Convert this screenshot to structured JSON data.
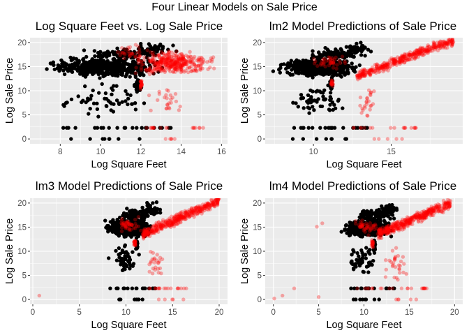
{
  "figure": {
    "suptitle": "Four Linear Models on Sale Price",
    "colors": {
      "panel_bg": "#EBEBEB",
      "grid": "#FFFFFF",
      "observed": "#000000",
      "predicted": "#FF0000"
    }
  },
  "chart_data": [
    {
      "type": "scatter",
      "title": "Log Square Feet vs. Log Sale Price",
      "xlabel": "Log Square Feet",
      "ylabel": "Log Sale Price",
      "xlim": [
        6.5,
        16.3
      ],
      "ylim": [
        -1,
        21
      ],
      "xticks": [
        8,
        10,
        12,
        14,
        16
      ],
      "yticks": [
        0,
        5,
        10,
        15,
        20
      ],
      "grid": true,
      "series": [
        {
          "color": "#000000",
          "opacity": 1.0,
          "role": "observed",
          "clusters": [
            {
              "shape": "band",
              "x": [
                6.9,
                13.4
              ],
              "y": [
                12.5,
                17.2
              ],
              "n": 520
            },
            {
              "shape": "band",
              "x": [
                8.8,
                13.6
              ],
              "y": [
                16.2,
                19.0
              ],
              "n": 90
            },
            {
              "shape": "band",
              "x": [
                11.5,
                14.0
              ],
              "y": [
                17.0,
                20.6
              ],
              "n": 40
            },
            {
              "shape": "band",
              "x": [
                7.5,
                12.6
              ],
              "y": [
                4.0,
                12.5
              ],
              "n": 55
            },
            {
              "shape": "band",
              "x": [
                11.6,
                12.1
              ],
              "y": [
                9.5,
                13.0
              ],
              "n": 45
            },
            {
              "shape": "line",
              "x": [
                8.0,
                13.6
              ],
              "y": [
                2.3,
                2.3
              ],
              "n": 22
            },
            {
              "shape": "line",
              "x": [
                8.5,
                12.2
              ],
              "y": [
                0.0,
                0.0
              ],
              "n": 8
            }
          ]
        },
        {
          "color": "#FF0000",
          "opacity": 0.32,
          "role": "predicted",
          "clusters": [
            {
              "shape": "band",
              "x": [
                11.2,
                16.0
              ],
              "y": [
                12.8,
                18.8
              ],
              "n": 380
            },
            {
              "shape": "band",
              "x": [
                10.3,
                12.5
              ],
              "y": [
                16.0,
                20.5
              ],
              "n": 30
            },
            {
              "shape": "band",
              "x": [
                11.95,
                12.1
              ],
              "y": [
                9.5,
                12.8
              ],
              "n": 25
            },
            {
              "shape": "band",
              "x": [
                12.2,
                14.5
              ],
              "y": [
                4.0,
                12.0
              ],
              "n": 25
            },
            {
              "shape": "line",
              "x": [
                11.9,
                15.2
              ],
              "y": [
                2.3,
                2.3
              ],
              "n": 18
            },
            {
              "shape": "line",
              "x": [
                12.5,
                14.0
              ],
              "y": [
                0.0,
                0.0
              ],
              "n": 5
            }
          ]
        }
      ]
    },
    {
      "type": "scatter",
      "title": "lm2 Model Predictions of Sale Price",
      "xlabel": "Log Square Feet",
      "ylabel": "Log Sale Price",
      "xlim": [
        6.9,
        19.6
      ],
      "ylim": [
        -1,
        21
      ],
      "xticks": [
        10,
        15
      ],
      "yticks": [
        0,
        5,
        10,
        15,
        20
      ],
      "grid": true,
      "series": [
        {
          "color": "#000000",
          "opacity": 1.0,
          "role": "observed",
          "clusters": [
            {
              "shape": "band",
              "x": [
                7.2,
                13.4
              ],
              "y": [
                12.5,
                17.2
              ],
              "n": 520
            },
            {
              "shape": "band",
              "x": [
                9.0,
                13.6
              ],
              "y": [
                16.2,
                19.0
              ],
              "n": 90
            },
            {
              "shape": "band",
              "x": [
                11.5,
                14.0
              ],
              "y": [
                17.0,
                20.6
              ],
              "n": 40
            },
            {
              "shape": "band",
              "x": [
                8.0,
                12.6
              ],
              "y": [
                4.0,
                12.5
              ],
              "n": 55
            },
            {
              "shape": "band",
              "x": [
                11.0,
                11.3
              ],
              "y": [
                9.5,
                13.0
              ],
              "n": 35
            },
            {
              "shape": "line",
              "x": [
                8.0,
                13.6
              ],
              "y": [
                2.3,
                2.3
              ],
              "n": 22
            },
            {
              "shape": "line",
              "x": [
                8.5,
                12.2
              ],
              "y": [
                0.0,
                0.0
              ],
              "n": 8
            }
          ]
        },
        {
          "color": "#FF0000",
          "opacity": 0.32,
          "role": "predicted",
          "trend": {
            "x": [
              12.8,
              19.0
            ],
            "y": [
              13.0,
              20.5
            ],
            "spread": 1.3
          },
          "clusters": [
            {
              "shape": "trend",
              "n": 420
            },
            {
              "shape": "band",
              "x": [
                9.5,
                12.5
              ],
              "y": [
                14.0,
                18.0
              ],
              "n": 40
            },
            {
              "shape": "band",
              "x": [
                11.1,
                11.3
              ],
              "y": [
                10.5,
                12.8
              ],
              "n": 20
            },
            {
              "shape": "band",
              "x": [
                12.8,
                14.0
              ],
              "y": [
                3.0,
                12.0
              ],
              "n": 25
            },
            {
              "shape": "line",
              "x": [
                12.5,
                16.6
              ],
              "y": [
                2.3,
                2.3
              ],
              "n": 18
            },
            {
              "shape": "line",
              "x": [
                13.5,
                16.0
              ],
              "y": [
                0.0,
                0.0
              ],
              "n": 5
            }
          ]
        }
      ]
    },
    {
      "type": "scatter",
      "title": "lm3 Model Predictions of Sale Price",
      "xlabel": "Log Square Feet",
      "ylabel": "Log Sale Price",
      "xlim": [
        -0.3,
        20.9
      ],
      "ylim": [
        -1,
        21
      ],
      "xticks": [
        0,
        5,
        10,
        15,
        20
      ],
      "yticks": [
        0,
        5,
        10,
        15,
        20
      ],
      "grid": true,
      "series": [
        {
          "color": "#000000",
          "opacity": 1.0,
          "role": "observed",
          "clusters": [
            {
              "shape": "band",
              "x": [
                7.3,
                13.4
              ],
              "y": [
                12.5,
                17.2
              ],
              "n": 500
            },
            {
              "shape": "band",
              "x": [
                9.0,
                13.6
              ],
              "y": [
                16.2,
                19.0
              ],
              "n": 80
            },
            {
              "shape": "band",
              "x": [
                11.5,
                14.0
              ],
              "y": [
                17.0,
                20.6
              ],
              "n": 35
            },
            {
              "shape": "band",
              "x": [
                8.0,
                11.5
              ],
              "y": [
                4.0,
                12.5
              ],
              "n": 50
            },
            {
              "shape": "band",
              "x": [
                11.0,
                11.3
              ],
              "y": [
                9.5,
                13.0
              ],
              "n": 35
            },
            {
              "shape": "line",
              "x": [
                8.0,
                13.6
              ],
              "y": [
                2.3,
                2.3
              ],
              "n": 20
            },
            {
              "shape": "line",
              "x": [
                8.5,
                12.2
              ],
              "y": [
                0.0,
                0.0
              ],
              "n": 8
            }
          ]
        },
        {
          "color": "#FF0000",
          "opacity": 0.32,
          "role": "predicted",
          "trend": {
            "x": [
              11.8,
              20.0
            ],
            "y": [
              13.5,
              20.5
            ],
            "spread": 1.4
          },
          "clusters": [
            {
              "shape": "trend",
              "n": 420
            },
            {
              "shape": "band",
              "x": [
                8.5,
                12.0
              ],
              "y": [
                13.5,
                17.5
              ],
              "n": 45
            },
            {
              "shape": "band",
              "x": [
                10.8,
                11.1
              ],
              "y": [
                10.5,
                12.8
              ],
              "n": 20
            },
            {
              "shape": "band",
              "x": [
                12.0,
                14.5
              ],
              "y": [
                3.0,
                12.0
              ],
              "n": 25
            },
            {
              "shape": "line",
              "x": [
                12.5,
                17.0
              ],
              "y": [
                2.3,
                2.3
              ],
              "n": 18
            },
            {
              "shape": "line",
              "x": [
                13.5,
                16.5
              ],
              "y": [
                0.0,
                0.0
              ],
              "n": 5
            },
            {
              "shape": "points",
              "pts": [
                [
                  0.7,
                  0.8
                ]
              ]
            }
          ]
        }
      ]
    },
    {
      "type": "scatter",
      "title": "lm4 Model Predictions of Sale Price",
      "xlabel": "Log Square Feet",
      "ylabel": "Log Sale Price",
      "xlim": [
        -0.9,
        20.9
      ],
      "ylim": [
        -1,
        21
      ],
      "xticks": [
        0,
        5,
        10,
        15,
        20
      ],
      "yticks": [
        0,
        5,
        10,
        15,
        20
      ],
      "grid": true,
      "series": [
        {
          "color": "#000000",
          "opacity": 1.0,
          "role": "observed",
          "clusters": [
            {
              "shape": "band",
              "x": [
                7.3,
                13.4
              ],
              "y": [
                12.5,
                17.2
              ],
              "n": 500
            },
            {
              "shape": "band",
              "x": [
                9.0,
                13.6
              ],
              "y": [
                16.2,
                19.0
              ],
              "n": 80
            },
            {
              "shape": "band",
              "x": [
                11.5,
                14.0
              ],
              "y": [
                17.0,
                20.6
              ],
              "n": 35
            },
            {
              "shape": "band",
              "x": [
                8.0,
                11.5
              ],
              "y": [
                4.0,
                12.5
              ],
              "n": 50
            },
            {
              "shape": "band",
              "x": [
                11.0,
                11.3
              ],
              "y": [
                9.5,
                13.0
              ],
              "n": 35
            },
            {
              "shape": "line",
              "x": [
                8.0,
                13.6
              ],
              "y": [
                2.3,
                2.3
              ],
              "n": 20
            },
            {
              "shape": "line",
              "x": [
                8.5,
                12.2
              ],
              "y": [
                0.0,
                0.0
              ],
              "n": 8
            }
          ]
        },
        {
          "color": "#FF0000",
          "opacity": 0.32,
          "role": "predicted",
          "trend": {
            "x": [
              11.5,
              19.6
            ],
            "y": [
              13.5,
              20.0
            ],
            "spread": 1.5
          },
          "clusters": [
            {
              "shape": "trend",
              "n": 420
            },
            {
              "shape": "band",
              "x": [
                8.5,
                12.0
              ],
              "y": [
                13.0,
                17.5
              ],
              "n": 45
            },
            {
              "shape": "band",
              "x": [
                10.8,
                11.1
              ],
              "y": [
                10.5,
                12.8
              ],
              "n": 20
            },
            {
              "shape": "band",
              "x": [
                12.0,
                15.0
              ],
              "y": [
                3.0,
                12.0
              ],
              "n": 30
            },
            {
              "shape": "line",
              "x": [
                9.0,
                17.0
              ],
              "y": [
                2.3,
                2.3
              ],
              "n": 22
            },
            {
              "shape": "line",
              "x": [
                13.0,
                16.5
              ],
              "y": [
                0.0,
                0.0
              ],
              "n": 5
            },
            {
              "shape": "points",
              "pts": [
                [
                  0.1,
                  0.2
                ],
                [
                  1.0,
                  0.8
                ],
                [
                  2.3,
                  2.3
                ],
                [
                  4.8,
                  15.1
                ],
                [
                  5.4,
                  15.8
                ],
                [
                  5.0,
                  0.5
                ]
              ]
            }
          ]
        }
      ]
    }
  ]
}
